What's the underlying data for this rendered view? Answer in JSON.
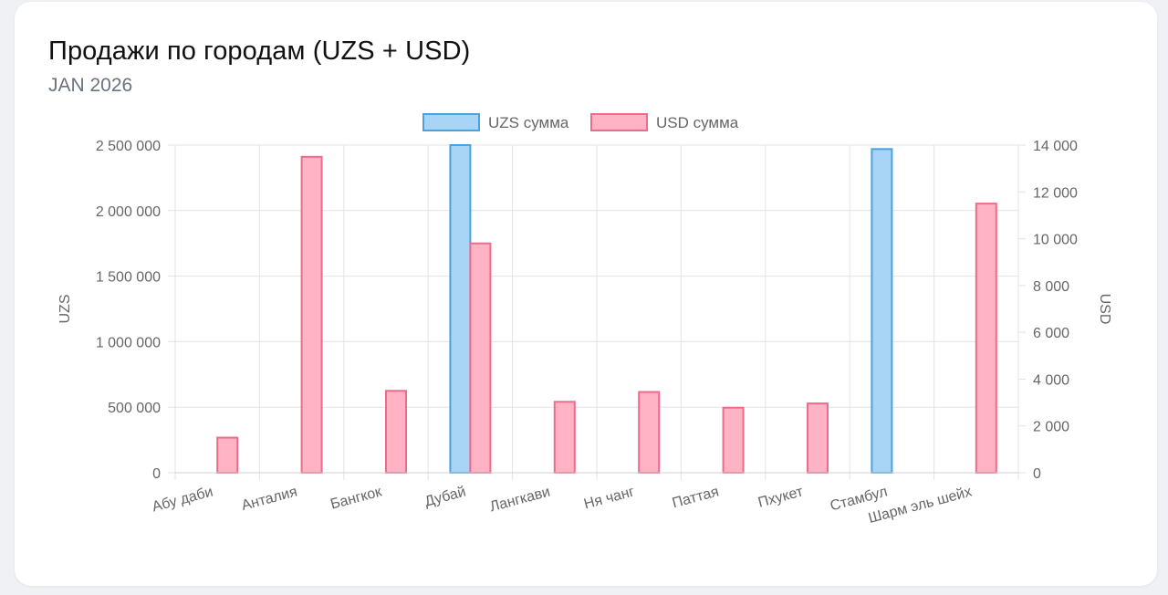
{
  "header": {
    "title": "Продажи по городам (UZS + USD)",
    "subtitle": "JAN 2026"
  },
  "colors": {
    "uzs_fill": "#a8d4f5",
    "uzs_stroke": "#4aa3df",
    "usd_fill": "#ffb3c4",
    "usd_stroke": "#ef6b8a",
    "grid": "#e3e3e3",
    "text": "#666666"
  },
  "chart_data": {
    "type": "bar",
    "categories": [
      "Абу даби",
      "Анталия",
      "Бангкок",
      "Дубай",
      "Лангкави",
      "Ня чанг",
      "Паттая",
      "Пхукет",
      "Стамбул",
      "Шарм эль шейх"
    ],
    "series": [
      {
        "name": "UZS сумма",
        "axis": "left",
        "values": [
          0,
          0,
          0,
          2500000,
          0,
          0,
          0,
          0,
          2470000,
          0
        ]
      },
      {
        "name": "USD сумма",
        "axis": "right",
        "values": [
          1500,
          13500,
          3500,
          9800,
          3030,
          3450,
          2780,
          2960,
          0,
          11500
        ]
      }
    ],
    "y_left": {
      "label": "UZS",
      "ylim": [
        0,
        2500000
      ],
      "ticks": [
        "0",
        "500 000",
        "1 000 000",
        "1 500 000",
        "2 000 000",
        "2 500 000"
      ]
    },
    "y_right": {
      "label": "USD",
      "ylim": [
        0,
        14000
      ],
      "ticks": [
        "0",
        "2 000",
        "4 000",
        "6 000",
        "8 000",
        "10 000",
        "12 000",
        "14 000"
      ]
    },
    "grid": true,
    "legend": "top"
  }
}
